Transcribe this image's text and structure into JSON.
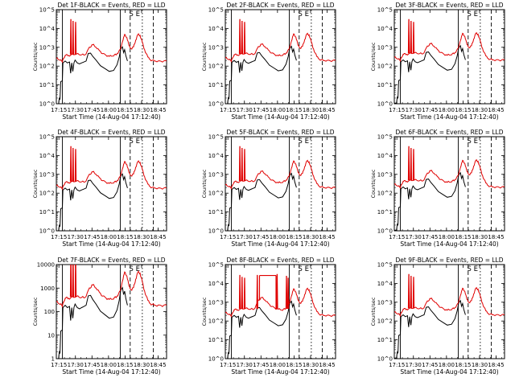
{
  "figure": {
    "background": "#ffffff",
    "axis_color": "#000000",
    "events_color": "#000000",
    "lld_color": "#e00000"
  },
  "chart_data": [
    {
      "type": "line",
      "title": "Det 1F-BLACK = Events, RED = LLD",
      "xlabel": "Start Time (14-Aug-04 17:12:40)",
      "ylabel": "Counts/sec",
      "y_scale": "log",
      "ylim": [
        1,
        100000
      ],
      "y_tick_labels": [
        "10^0",
        "10^1",
        "10^2",
        "10^3",
        "10^4",
        "10^5"
      ],
      "x_tick_labels": [
        "17:15",
        "17:30",
        "17:45",
        "18:00",
        "18:15",
        "18:30",
        "18:45"
      ],
      "series": [
        {
          "name": "Events",
          "color": "#000000"
        },
        {
          "name": "LLD",
          "color": "#e00000"
        }
      ],
      "annotations": [
        "S",
        "E"
      ],
      "variant": "spikes"
    },
    {
      "type": "line",
      "title": "Det 2F-BLACK = Events, RED = LLD",
      "xlabel": "Start Time (14-Aug-04 17:12:40)",
      "ylabel": "Counts/sec",
      "y_scale": "log",
      "ylim": [
        1,
        100000
      ],
      "y_tick_labels": [
        "10^0",
        "10^1",
        "10^2",
        "10^3",
        "10^4",
        "10^5"
      ],
      "x_tick_labels": [
        "17:15",
        "17:30",
        "17:45",
        "18:00",
        "18:15",
        "18:30",
        "18:45"
      ],
      "series": [
        {
          "name": "Events",
          "color": "#000000"
        },
        {
          "name": "LLD",
          "color": "#e00000"
        }
      ],
      "annotations": [
        "S",
        "E"
      ],
      "variant": "spikes"
    },
    {
      "type": "line",
      "title": "Det 3F-BLACK = Events, RED = LLD",
      "xlabel": "Start Time (14-Aug-04 17:12:40)",
      "ylabel": "Counts/sec",
      "y_scale": "log",
      "ylim": [
        1,
        100000
      ],
      "y_tick_labels": [
        "10^0",
        "10^1",
        "10^2",
        "10^3",
        "10^4",
        "10^5"
      ],
      "x_tick_labels": [
        "17:15",
        "17:30",
        "17:45",
        "18:00",
        "18:15",
        "18:30",
        "18:45"
      ],
      "series": [
        {
          "name": "Events",
          "color": "#000000"
        },
        {
          "name": "LLD",
          "color": "#e00000"
        }
      ],
      "annotations": [
        "S",
        "E"
      ],
      "variant": "spikes"
    },
    {
      "type": "line",
      "title": "Det 4F-BLACK = Events, RED = LLD",
      "xlabel": "Start Time (14-Aug-04 17:12:40)",
      "ylabel": "Counts/sec",
      "y_scale": "log",
      "ylim": [
        1,
        100000
      ],
      "y_tick_labels": [
        "10^0",
        "10^1",
        "10^2",
        "10^3",
        "10^4",
        "10^5"
      ],
      "x_tick_labels": [
        "17:15",
        "17:30",
        "17:45",
        "18:00",
        "18:15",
        "18:30",
        "18:45"
      ],
      "series": [
        {
          "name": "Events",
          "color": "#000000"
        },
        {
          "name": "LLD",
          "color": "#e00000"
        }
      ],
      "annotations": [
        "S",
        "E"
      ],
      "variant": "spikes"
    },
    {
      "type": "line",
      "title": "Det 5F-BLACK = Events, RED = LLD",
      "xlabel": "Start Time (14-Aug-04 17:12:40)",
      "ylabel": "Counts/sec",
      "y_scale": "log",
      "ylim": [
        1,
        100000
      ],
      "y_tick_labels": [
        "10^0",
        "10^1",
        "10^2",
        "10^3",
        "10^4",
        "10^5"
      ],
      "x_tick_labels": [
        "17:15",
        "17:30",
        "17:45",
        "18:00",
        "18:15",
        "18:30",
        "18:45"
      ],
      "series": [
        {
          "name": "Events",
          "color": "#000000"
        },
        {
          "name": "LLD",
          "color": "#e00000"
        }
      ],
      "annotations": [
        "S",
        "E"
      ],
      "variant": "spikes"
    },
    {
      "type": "line",
      "title": "Det 6F-BLACK = Events, RED = LLD",
      "xlabel": "Start Time (14-Aug-04 17:12:40)",
      "ylabel": "Counts/sec",
      "y_scale": "log",
      "ylim": [
        1,
        100000
      ],
      "y_tick_labels": [
        "10^0",
        "10^1",
        "10^2",
        "10^3",
        "10^4",
        "10^5"
      ],
      "x_tick_labels": [
        "17:15",
        "17:30",
        "17:45",
        "18:00",
        "18:15",
        "18:30",
        "18:45"
      ],
      "series": [
        {
          "name": "Events",
          "color": "#000000"
        },
        {
          "name": "LLD",
          "color": "#e00000"
        }
      ],
      "annotations": [
        "S",
        "E"
      ],
      "variant": "spikes"
    },
    {
      "type": "line",
      "title": "Det 7F-BLACK = Events, RED = LLD",
      "xlabel": "Start Time (14-Aug-04 17:12:40)",
      "ylabel": "Counts/sec",
      "y_scale": "log",
      "ylim": [
        1,
        10000
      ],
      "y_tick_labels": [
        "1",
        "10",
        "100",
        "1000",
        "10000"
      ],
      "x_tick_labels": [
        "17:15",
        "17:30",
        "17:45",
        "18:00",
        "18:15",
        "18:30",
        "18:45"
      ],
      "series": [
        {
          "name": "Events",
          "color": "#000000"
        },
        {
          "name": "LLD",
          "color": "#e00000"
        }
      ],
      "annotations": [
        "S",
        "E"
      ],
      "variant": "spikes"
    },
    {
      "type": "line",
      "title": "Det 8F-BLACK = Events, RED = LLD",
      "xlabel": "Start Time (14-Aug-04 17:12:40)",
      "ylabel": "Counts/sec",
      "y_scale": "log",
      "ylim": [
        1,
        100000
      ],
      "y_tick_labels": [
        "10^0",
        "10^1",
        "10^2",
        "10^3",
        "10^4",
        "10^5"
      ],
      "x_tick_labels": [
        "17:15",
        "17:30",
        "17:45",
        "18:00",
        "18:15",
        "18:30",
        "18:45"
      ],
      "series": [
        {
          "name": "Events",
          "color": "#000000"
        },
        {
          "name": "LLD",
          "color": "#e00000"
        }
      ],
      "annotations": [
        "S",
        "E"
      ],
      "variant": "plateau"
    },
    {
      "type": "line",
      "title": "Det 9F-BLACK = Events, RED = LLD",
      "xlabel": "Start Time (14-Aug-04 17:12:40)",
      "ylabel": "Counts/sec",
      "y_scale": "log",
      "ylim": [
        1,
        100000
      ],
      "y_tick_labels": [
        "10^0",
        "10^1",
        "10^2",
        "10^3",
        "10^4",
        "10^5"
      ],
      "x_tick_labels": [
        "17:15",
        "17:30",
        "17:45",
        "18:00",
        "18:15",
        "18:30",
        "18:45"
      ],
      "series": [
        {
          "name": "Events",
          "color": "#000000"
        },
        {
          "name": "LLD",
          "color": "#e00000"
        }
      ],
      "annotations": [
        "S",
        "E"
      ],
      "variant": "spikes"
    }
  ]
}
